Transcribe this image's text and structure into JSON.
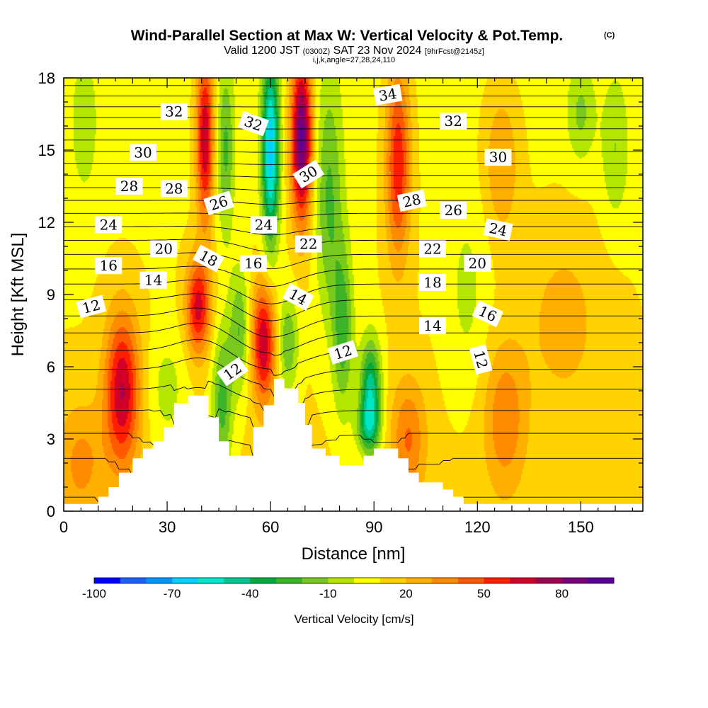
{
  "title": {
    "main": "Wind-Parallel Section at Max W: Vertical Velocity & Pot.Temp.",
    "copyright": "(C)",
    "valid_prefix": "Valid 1200 JST",
    "valid_utc": "(0300Z)",
    "valid_date": "SAT 23 Nov 2024",
    "forecast": "[9hrFcst@2145z]",
    "ijk": "i,j,k,angle=27,28,24,110"
  },
  "colors": {
    "bands": [
      "#0000ff",
      "#1e60ff",
      "#0096ff",
      "#00d2ff",
      "#00e6c8",
      "#00c88c",
      "#00aa3c",
      "#3cb428",
      "#78c81e",
      "#b4e600",
      "#ffff00",
      "#ffd200",
      "#ffaf00",
      "#ff8c00",
      "#ff5a00",
      "#ff1e00",
      "#d20028",
      "#a00050",
      "#780078",
      "#5a0096"
    ],
    "terrain": "#ffffff",
    "contour": "#000000",
    "background": "#ffffff"
  },
  "chart_data": {
    "type": "heatmap",
    "xlabel": "Distance [nm]",
    "ylabel": "Height [Kft MSL]",
    "xlim": [
      0,
      168
    ],
    "ylim": [
      0,
      18
    ],
    "xticks": [
      0,
      30,
      60,
      90,
      120,
      150
    ],
    "yticks": [
      0,
      3,
      6,
      9,
      12,
      15,
      18
    ],
    "colorbar": {
      "label": "Vertical Velocity [cm/s]",
      "min": -100,
      "max": 100,
      "step": 10,
      "tick_values": [
        -100,
        -70,
        -40,
        -10,
        20,
        50,
        80
      ],
      "tick_labels": [
        "-100",
        "-70",
        "-40",
        "-10",
        "20",
        "50",
        "80"
      ]
    },
    "terrain_profile": [
      [
        0,
        0.3
      ],
      [
        10,
        0.3
      ],
      [
        10,
        0.6
      ],
      [
        13,
        0.6
      ],
      [
        13,
        1.0
      ],
      [
        16,
        1.0
      ],
      [
        16,
        1.6
      ],
      [
        20,
        1.6
      ],
      [
        20,
        2.2
      ],
      [
        23,
        2.2
      ],
      [
        23,
        2.6
      ],
      [
        26,
        2.6
      ],
      [
        26,
        2.9
      ],
      [
        29,
        2.9
      ],
      [
        29,
        3.5
      ],
      [
        32,
        3.5
      ],
      [
        32,
        4.5
      ],
      [
        36,
        4.5
      ],
      [
        36,
        4.8
      ],
      [
        42,
        4.8
      ],
      [
        42,
        3.9
      ],
      [
        45,
        3.9
      ],
      [
        45,
        2.9
      ],
      [
        48,
        2.9
      ],
      [
        48,
        2.3
      ],
      [
        55,
        2.3
      ],
      [
        55,
        3.5
      ],
      [
        58,
        3.5
      ],
      [
        58,
        4.4
      ],
      [
        61,
        4.4
      ],
      [
        61,
        5.5
      ],
      [
        64,
        5.5
      ],
      [
        64,
        5.1
      ],
      [
        68,
        5.1
      ],
      [
        68,
        4.5
      ],
      [
        70,
        4.5
      ],
      [
        70,
        3.6
      ],
      [
        72,
        3.6
      ],
      [
        72,
        2.6
      ],
      [
        76,
        2.6
      ],
      [
        76,
        2.3
      ],
      [
        80,
        2.3
      ],
      [
        80,
        1.9
      ],
      [
        87,
        1.9
      ],
      [
        87,
        2.3
      ],
      [
        90,
        2.3
      ],
      [
        90,
        2.6
      ],
      [
        97,
        2.6
      ],
      [
        97,
        2.2
      ],
      [
        100,
        2.2
      ],
      [
        100,
        1.6
      ],
      [
        103,
        1.6
      ],
      [
        103,
        1.2
      ],
      [
        110,
        1.2
      ],
      [
        110,
        0.9
      ],
      [
        113,
        0.9
      ],
      [
        113,
        0.6
      ],
      [
        116,
        0.6
      ],
      [
        116,
        0.3
      ],
      [
        168,
        0.3
      ]
    ],
    "vertical_velocity_features": [
      {
        "x": 17,
        "y": 5.0,
        "sx": 5,
        "sy": 3.2,
        "w": 60
      },
      {
        "x": 5,
        "y": 2.0,
        "sx": 7,
        "sy": 2.5,
        "w": 22
      },
      {
        "x": 30,
        "y": 5.0,
        "sx": 6,
        "sy": 2.5,
        "w": -14
      },
      {
        "x": 39,
        "y": 8.5,
        "sx": 3.5,
        "sy": 2.0,
        "w": 55
      },
      {
        "x": 46,
        "y": 4.5,
        "sx": 3,
        "sy": 3.0,
        "w": -35
      },
      {
        "x": 51,
        "y": 7.5,
        "sx": 3,
        "sy": 2.5,
        "w": -30
      },
      {
        "x": 58,
        "y": 7.0,
        "sx": 3.5,
        "sy": 2.5,
        "w": 60
      },
      {
        "x": 65,
        "y": 7.0,
        "sx": 3,
        "sy": 2.0,
        "w": -30
      },
      {
        "x": 41,
        "y": 15.5,
        "sx": 2.5,
        "sy": 3.5,
        "w": 62
      },
      {
        "x": 47,
        "y": 15.0,
        "sx": 2.5,
        "sy": 3.5,
        "w": -30
      },
      {
        "x": 60,
        "y": 15.0,
        "sx": 2.5,
        "sy": 4.0,
        "w": -75
      },
      {
        "x": 69,
        "y": 15.5,
        "sx": 3.0,
        "sy": 3.5,
        "w": 85
      },
      {
        "x": 77,
        "y": 13.0,
        "sx": 4,
        "sy": 5.0,
        "w": -30
      },
      {
        "x": 89,
        "y": 4.8,
        "sx": 3,
        "sy": 2.2,
        "w": -60
      },
      {
        "x": 81,
        "y": 7.5,
        "sx": 3.0,
        "sy": 3.5,
        "w": -35
      },
      {
        "x": 88,
        "y": 3.5,
        "sx": 3.5,
        "sy": 1.0,
        "w": -25
      },
      {
        "x": 97,
        "y": 14.5,
        "sx": 3.5,
        "sy": 4.0,
        "w": 50
      },
      {
        "x": 100,
        "y": 3.0,
        "sx": 5,
        "sy": 2.5,
        "w": 30
      },
      {
        "x": 117,
        "y": 9.0,
        "sx": 6,
        "sy": 4.0,
        "w": -12
      },
      {
        "x": 128,
        "y": 3.8,
        "sx": 6,
        "sy": 3.0,
        "w": 28
      },
      {
        "x": 127,
        "y": 14.5,
        "sx": 5,
        "sy": 3.0,
        "w": 22
      },
      {
        "x": 150,
        "y": 16.5,
        "sx": 4,
        "sy": 2.0,
        "w": -20
      },
      {
        "x": 160,
        "y": 15.0,
        "sx": 4,
        "sy": 3.0,
        "w": -18
      },
      {
        "x": 6,
        "y": 16.0,
        "sx": 4,
        "sy": 3.0,
        "w": -15
      },
      {
        "x": 145,
        "y": 8.0,
        "sx": 12,
        "sy": 4.0,
        "w": 14
      }
    ],
    "pot_temp_contour_levels": [
      8,
      9,
      10,
      11,
      12,
      13,
      14,
      15,
      16,
      17,
      18,
      19,
      20,
      21,
      22,
      23,
      24,
      25,
      26,
      27,
      28,
      29,
      30,
      31,
      32,
      33,
      34,
      35
    ],
    "pot_temp_labels": [
      {
        "text": "32",
        "x": 32,
        "y": 16.6,
        "angle": 0
      },
      {
        "text": "32",
        "x": 55,
        "y": 16.1,
        "angle": 20
      },
      {
        "text": "34",
        "x": 94,
        "y": 17.3,
        "angle": -10
      },
      {
        "text": "32",
        "x": 113,
        "y": 16.2,
        "angle": 0
      },
      {
        "text": "30",
        "x": 23,
        "y": 14.9,
        "angle": 0
      },
      {
        "text": "30",
        "x": 71,
        "y": 14.0,
        "angle": -32
      },
      {
        "text": "30",
        "x": 126,
        "y": 14.7,
        "angle": 0
      },
      {
        "text": "28",
        "x": 19,
        "y": 13.5,
        "angle": 0
      },
      {
        "text": "28",
        "x": 32,
        "y": 13.4,
        "angle": 0
      },
      {
        "text": "28",
        "x": 101,
        "y": 12.9,
        "angle": -12
      },
      {
        "text": "26",
        "x": 45,
        "y": 12.8,
        "angle": -18
      },
      {
        "text": "26",
        "x": 113,
        "y": 12.5,
        "angle": 0
      },
      {
        "text": "24",
        "x": 13,
        "y": 11.9,
        "angle": 0
      },
      {
        "text": "24",
        "x": 58,
        "y": 11.9,
        "angle": 0
      },
      {
        "text": "24",
        "x": 126,
        "y": 11.7,
        "angle": 12
      },
      {
        "text": "22",
        "x": 71,
        "y": 11.1,
        "angle": 0
      },
      {
        "text": "22",
        "x": 107,
        "y": 10.9,
        "angle": 0
      },
      {
        "text": "20",
        "x": 29,
        "y": 10.9,
        "angle": 0
      },
      {
        "text": "20",
        "x": 120,
        "y": 10.3,
        "angle": 0
      },
      {
        "text": "18",
        "x": 42,
        "y": 10.5,
        "angle": 28
      },
      {
        "text": "18",
        "x": 107,
        "y": 9.5,
        "angle": 0
      },
      {
        "text": "16",
        "x": 13,
        "y": 10.2,
        "angle": 0
      },
      {
        "text": "16",
        "x": 55,
        "y": 10.3,
        "angle": 0
      },
      {
        "text": "16",
        "x": 123,
        "y": 8.2,
        "angle": 25
      },
      {
        "text": "14",
        "x": 26,
        "y": 9.6,
        "angle": 0
      },
      {
        "text": "14",
        "x": 68,
        "y": 8.9,
        "angle": 28
      },
      {
        "text": "14",
        "x": 107,
        "y": 7.7,
        "angle": 0
      },
      {
        "text": "12",
        "x": 8,
        "y": 8.5,
        "angle": -15
      },
      {
        "text": "12",
        "x": 81,
        "y": 6.6,
        "angle": -18
      },
      {
        "text": "12",
        "x": 121,
        "y": 6.3,
        "angle": 75
      },
      {
        "text": "12",
        "x": 49,
        "y": 5.8,
        "angle": -35
      }
    ]
  }
}
